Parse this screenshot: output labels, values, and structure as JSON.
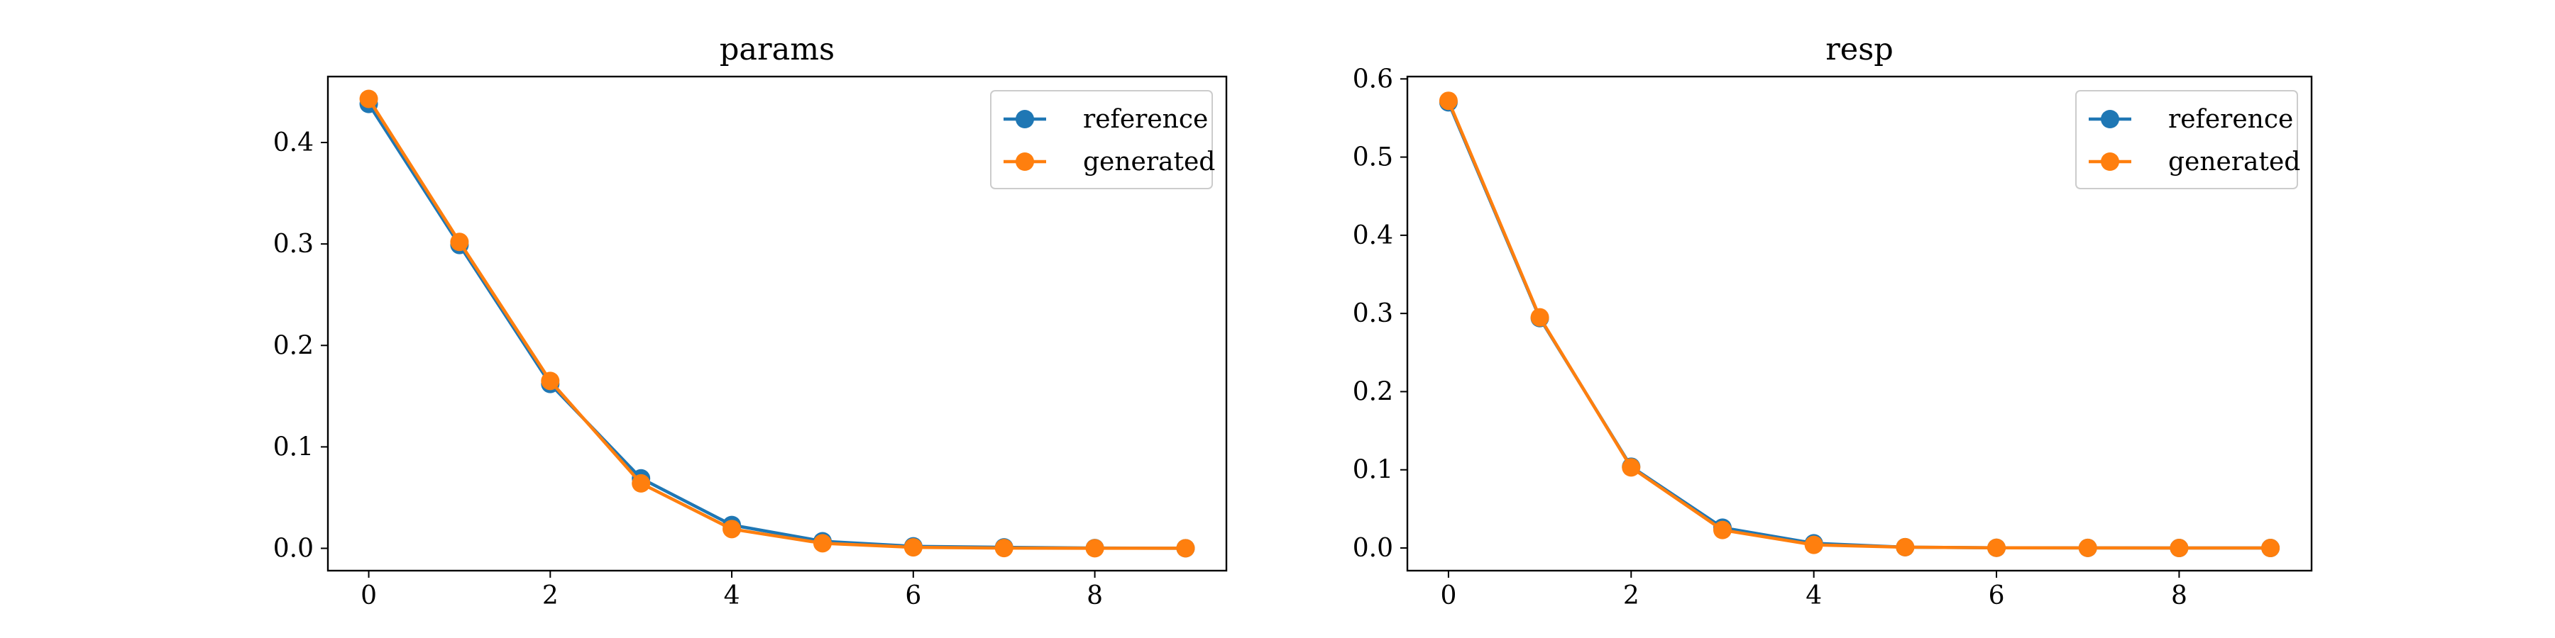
{
  "chart_data": [
    {
      "type": "line",
      "title": "params",
      "xlabel": "",
      "ylabel": "",
      "x": [
        0,
        1,
        2,
        3,
        4,
        5,
        6,
        7,
        8,
        9
      ],
      "xlim": [
        -0.45,
        9.45
      ],
      "ylim": [
        -0.022,
        0.465
      ],
      "xticks": [
        0,
        2,
        4,
        6,
        8
      ],
      "yticks": [
        0.0,
        0.1,
        0.2,
        0.3,
        0.4
      ],
      "ytick_labels": [
        "0.0",
        "0.1",
        "0.2",
        "0.3",
        "0.4"
      ],
      "grid": false,
      "legend_position": "top-right",
      "series": [
        {
          "name": "reference",
          "color": "#1f77b4",
          "values": [
            0.438,
            0.299,
            0.162,
            0.069,
            0.023,
            0.007,
            0.002,
            0.001,
            0.0003,
            0.0001
          ]
        },
        {
          "name": "generated",
          "color": "#ff7f0e",
          "values": [
            0.443,
            0.302,
            0.165,
            0.064,
            0.019,
            0.005,
            0.001,
            0.0003,
            0.0001,
            0.0001
          ]
        }
      ]
    },
    {
      "type": "line",
      "title": "resp",
      "xlabel": "",
      "ylabel": "",
      "x": [
        0,
        1,
        2,
        3,
        4,
        5,
        6,
        7,
        8,
        9
      ],
      "xlim": [
        -0.45,
        9.45
      ],
      "ylim": [
        -0.029,
        0.603
      ],
      "xticks": [
        0,
        2,
        4,
        6,
        8
      ],
      "yticks": [
        0.0,
        0.1,
        0.2,
        0.3,
        0.4,
        0.5,
        0.6
      ],
      "ytick_labels": [
        "0.0",
        "0.1",
        "0.2",
        "0.3",
        "0.4",
        "0.5",
        "0.6"
      ],
      "grid": false,
      "legend_position": "top-right",
      "series": [
        {
          "name": "reference",
          "color": "#1f77b4",
          "values": [
            0.57,
            0.294,
            0.104,
            0.026,
            0.006,
            0.001,
            0.0002,
            0.0001,
            0.0,
            0.0
          ]
        },
        {
          "name": "generated",
          "color": "#ff7f0e",
          "values": [
            0.572,
            0.295,
            0.103,
            0.023,
            0.004,
            0.001,
            0.0002,
            0.0001,
            0.0,
            0.0
          ]
        }
      ]
    }
  ]
}
